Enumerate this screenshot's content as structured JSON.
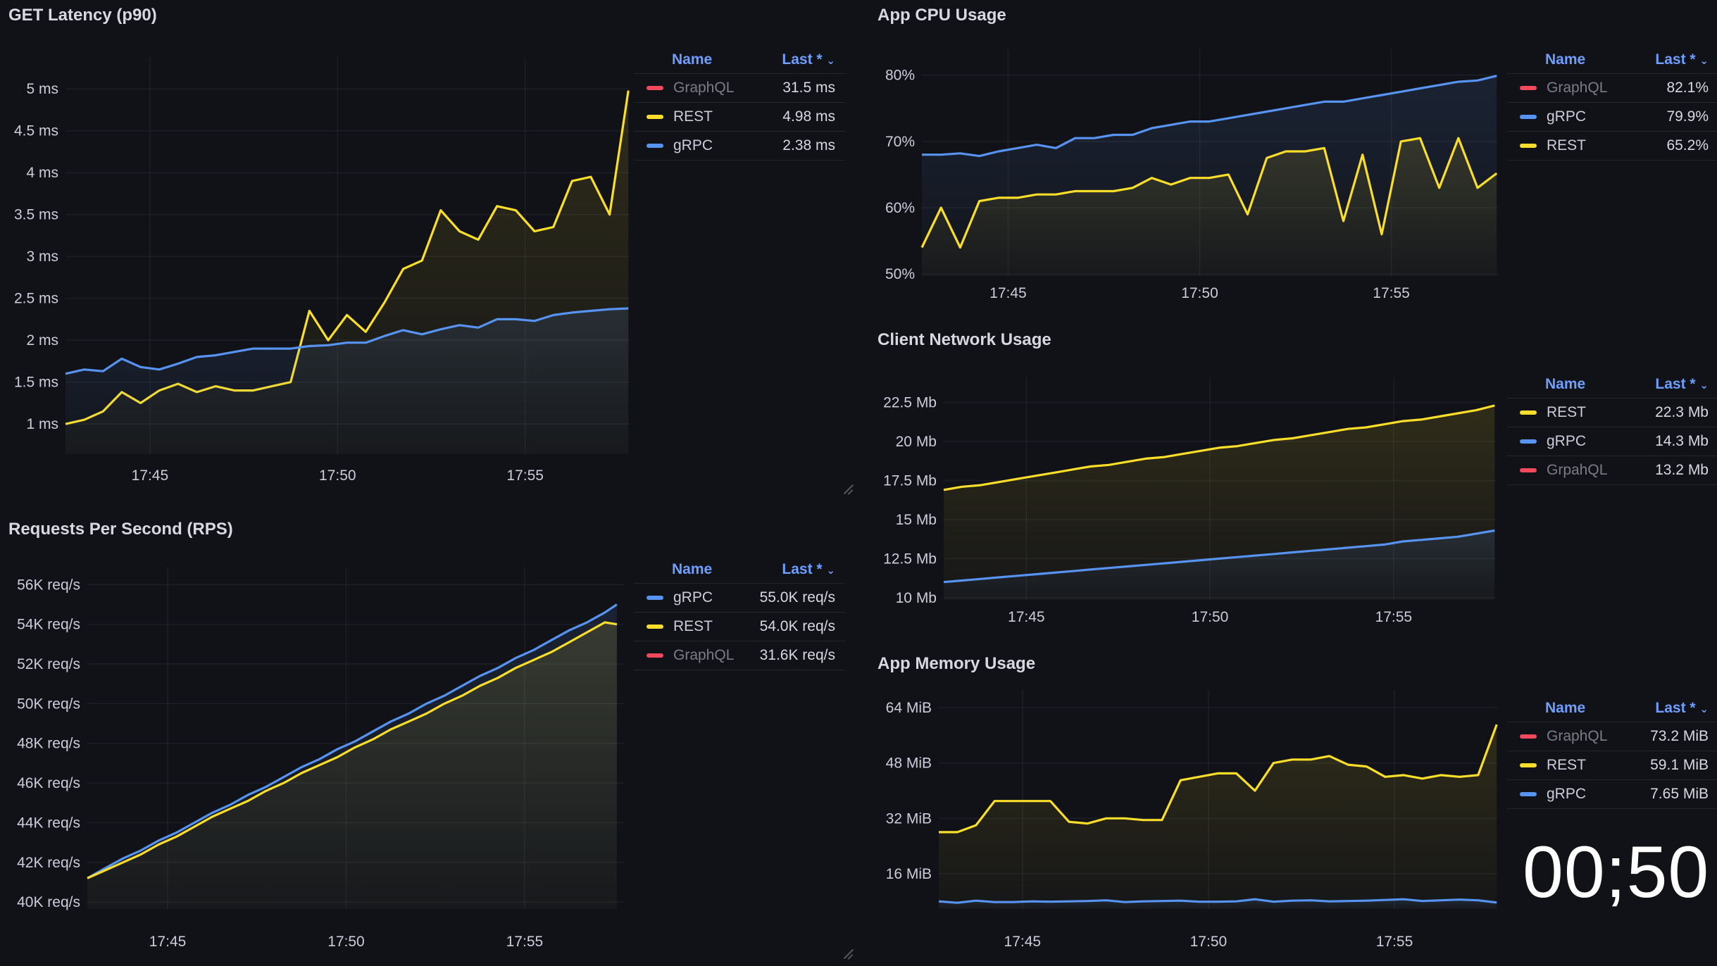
{
  "panels": [
    {
      "title": "GET Latency (p90)",
      "legend": {
        "name_header": "Name",
        "last_header": "Last *",
        "sort_icon": "chevron-down-icon",
        "rows": [
          {
            "name": "GraphQL",
            "value": "31.5 ms",
            "color": "#f2495c",
            "muted": true
          },
          {
            "name": "REST",
            "value": "4.98 ms",
            "color": "#fade2a",
            "muted": false
          },
          {
            "name": "gRPC",
            "value": "2.38 ms",
            "color": "#5794f2",
            "muted": false
          }
        ]
      }
    },
    {
      "title": "Requests Per Second (RPS)",
      "legend": {
        "name_header": "Name",
        "last_header": "Last *",
        "sort_icon": "chevron-down-icon",
        "rows": [
          {
            "name": "gRPC",
            "value": "55.0K req/s",
            "color": "#5794f2",
            "muted": false
          },
          {
            "name": "REST",
            "value": "54.0K req/s",
            "color": "#fade2a",
            "muted": false
          },
          {
            "name": "GraphQL",
            "value": "31.6K req/s",
            "color": "#f2495c",
            "muted": true
          }
        ]
      }
    },
    {
      "title": "App CPU Usage",
      "legend": {
        "name_header": "Name",
        "last_header": "Last *",
        "sort_icon": "chevron-down-icon",
        "rows": [
          {
            "name": "GraphQL",
            "value": "82.1%",
            "color": "#f2495c",
            "muted": true
          },
          {
            "name": "gRPC",
            "value": "79.9%",
            "color": "#5794f2",
            "muted": false
          },
          {
            "name": "REST",
            "value": "65.2%",
            "color": "#fade2a",
            "muted": false
          }
        ]
      }
    },
    {
      "title": "Client Network Usage",
      "legend": {
        "name_header": "Name",
        "last_header": "Last *",
        "sort_icon": "chevron-down-icon",
        "rows": [
          {
            "name": "REST",
            "value": "22.3 Mb",
            "color": "#fade2a",
            "muted": false
          },
          {
            "name": "gRPC",
            "value": "14.3 Mb",
            "color": "#5794f2",
            "muted": false
          },
          {
            "name": "GrpahQL",
            "value": "13.2 Mb",
            "color": "#f2495c",
            "muted": true
          }
        ]
      }
    },
    {
      "title": "App Memory Usage",
      "legend": {
        "name_header": "Name",
        "last_header": "Last *",
        "sort_icon": "chevron-down-icon",
        "rows": [
          {
            "name": "GraphQL",
            "value": "73.2 MiB",
            "color": "#f2495c",
            "muted": true
          },
          {
            "name": "REST",
            "value": "59.1 MiB",
            "color": "#fade2a",
            "muted": false
          },
          {
            "name": "gRPC",
            "value": "7.65 MiB",
            "color": "#5794f2",
            "muted": false
          }
        ]
      }
    }
  ],
  "overlay_timer": "00;50",
  "chart_data": [
    {
      "type": "line",
      "title": "GET Latency (p90)",
      "grid": true,
      "legend_placement": "right",
      "xlim": [
        "17:42:45",
        "17:57:47"
      ],
      "ylim": [
        0.64,
        5.38
      ],
      "xticks": [
        {
          "value": "17:45:00",
          "label": "17:45"
        },
        {
          "value": "17:50:00",
          "label": "17:50"
        },
        {
          "value": "17:55:00",
          "label": "17:55"
        }
      ],
      "yticks": [
        {
          "value": 1,
          "label": "1 ms"
        },
        {
          "value": 1.5,
          "label": "1.5 ms"
        },
        {
          "value": 2,
          "label": "2 ms"
        },
        {
          "value": 2.5,
          "label": "2.5 ms"
        },
        {
          "value": 3,
          "label": "3 ms"
        },
        {
          "value": 3.5,
          "label": "3.5 ms"
        },
        {
          "value": 4,
          "label": "4 ms"
        },
        {
          "value": 4.5,
          "label": "4.5 ms"
        },
        {
          "value": 5,
          "label": "5 ms"
        }
      ],
      "x": [
        "17:42:45",
        "17:43:15",
        "17:43:45",
        "17:44:15",
        "17:44:45",
        "17:45:15",
        "17:45:45",
        "17:46:15",
        "17:46:45",
        "17:47:15",
        "17:47:45",
        "17:48:15",
        "17:48:45",
        "17:49:15",
        "17:49:45",
        "17:50:15",
        "17:50:45",
        "17:51:15",
        "17:51:45",
        "17:52:15",
        "17:52:45",
        "17:53:15",
        "17:53:45",
        "17:54:15",
        "17:54:45",
        "17:55:15",
        "17:55:45",
        "17:56:15",
        "17:56:45",
        "17:57:15",
        "17:57:45"
      ],
      "series": [
        {
          "name": "REST",
          "color": "#fade2a",
          "values": [
            1.0,
            1.05,
            1.15,
            1.38,
            1.25,
            1.4,
            1.48,
            1.38,
            1.45,
            1.4,
            1.4,
            1.45,
            1.5,
            2.35,
            2.0,
            2.3,
            2.1,
            2.45,
            2.85,
            2.95,
            3.55,
            3.3,
            3.2,
            3.6,
            3.55,
            3.3,
            3.35,
            3.9,
            3.95,
            3.5,
            4.98
          ]
        },
        {
          "name": "gRPC",
          "color": "#5794f2",
          "values": [
            1.6,
            1.65,
            1.63,
            1.78,
            1.68,
            1.65,
            1.72,
            1.8,
            1.82,
            1.86,
            1.9,
            1.9,
            1.9,
            1.93,
            1.94,
            1.97,
            1.97,
            2.05,
            2.12,
            2.07,
            2.13,
            2.18,
            2.15,
            2.25,
            2.25,
            2.23,
            2.3,
            2.33,
            2.35,
            2.37,
            2.38
          ]
        }
      ]
    },
    {
      "type": "line",
      "title": "Requests Per Second (RPS)",
      "grid": true,
      "legend_placement": "right",
      "xlim": [
        "17:42:45",
        "17:57:47"
      ],
      "ylim": [
        39.65,
        56.9
      ],
      "xticks": [
        {
          "value": "17:45:00",
          "label": "17:45"
        },
        {
          "value": "17:50:00",
          "label": "17:50"
        },
        {
          "value": "17:55:00",
          "label": "17:55"
        }
      ],
      "yticks": [
        {
          "value": 40,
          "label": "40K req/s"
        },
        {
          "value": 42,
          "label": "42K req/s"
        },
        {
          "value": 44,
          "label": "44K req/s"
        },
        {
          "value": 46,
          "label": "46K req/s"
        },
        {
          "value": 48,
          "label": "48K req/s"
        },
        {
          "value": 50,
          "label": "50K req/s"
        },
        {
          "value": 52,
          "label": "52K req/s"
        },
        {
          "value": 54,
          "label": "54K req/s"
        },
        {
          "value": 56,
          "label": "56K req/s"
        }
      ],
      "x": [
        "17:42:45",
        "17:43:15",
        "17:43:45",
        "17:44:15",
        "17:44:45",
        "17:45:15",
        "17:45:45",
        "17:46:15",
        "17:46:45",
        "17:47:15",
        "17:47:45",
        "17:48:15",
        "17:48:45",
        "17:49:15",
        "17:49:45",
        "17:50:15",
        "17:50:45",
        "17:51:15",
        "17:51:45",
        "17:52:15",
        "17:52:45",
        "17:53:15",
        "17:53:45",
        "17:54:15",
        "17:54:45",
        "17:55:15",
        "17:55:45",
        "17:56:15",
        "17:56:45",
        "17:57:15",
        "17:57:35"
      ],
      "series": [
        {
          "name": "gRPC",
          "color": "#5794f2",
          "values": [
            41.2,
            41.7,
            42.2,
            42.6,
            43.1,
            43.5,
            44.0,
            44.5,
            44.9,
            45.4,
            45.8,
            46.3,
            46.8,
            47.2,
            47.7,
            48.1,
            48.6,
            49.1,
            49.5,
            50.0,
            50.4,
            50.9,
            51.4,
            51.8,
            52.3,
            52.7,
            53.2,
            53.7,
            54.1,
            54.6,
            55.0
          ]
        },
        {
          "name": "REST",
          "color": "#fade2a",
          "values": [
            41.2,
            41.6,
            42.0,
            42.4,
            42.9,
            43.3,
            43.8,
            44.3,
            44.7,
            45.1,
            45.6,
            46.0,
            46.5,
            46.9,
            47.3,
            47.8,
            48.2,
            48.7,
            49.1,
            49.5,
            50.0,
            50.4,
            50.9,
            51.3,
            51.8,
            52.2,
            52.6,
            53.1,
            53.6,
            54.1,
            54.0
          ]
        }
      ]
    },
    {
      "type": "line",
      "title": "App CPU Usage",
      "grid": true,
      "legend_placement": "right",
      "xlim": [
        "17:42:45",
        "17:57:47"
      ],
      "ylim": [
        49.7,
        83.9
      ],
      "xticks": [
        {
          "value": "17:45:00",
          "label": "17:45"
        },
        {
          "value": "17:50:00",
          "label": "17:50"
        },
        {
          "value": "17:55:00",
          "label": "17:55"
        }
      ],
      "yticks": [
        {
          "value": 50,
          "label": "50%"
        },
        {
          "value": 60,
          "label": "60%"
        },
        {
          "value": 70,
          "label": "70%"
        },
        {
          "value": 80,
          "label": "80%"
        }
      ],
      "x": [
        "17:42:45",
        "17:43:15",
        "17:43:45",
        "17:44:15",
        "17:44:45",
        "17:45:15",
        "17:45:45",
        "17:46:15",
        "17:46:45",
        "17:47:15",
        "17:47:45",
        "17:48:15",
        "17:48:45",
        "17:49:15",
        "17:49:45",
        "17:50:15",
        "17:50:45",
        "17:51:15",
        "17:51:45",
        "17:52:15",
        "17:52:45",
        "17:53:15",
        "17:53:45",
        "17:54:15",
        "17:54:45",
        "17:55:15",
        "17:55:45",
        "17:56:15",
        "17:56:45",
        "17:57:15",
        "17:57:45"
      ],
      "series": [
        {
          "name": "gRPC",
          "color": "#5794f2",
          "values": [
            68,
            68,
            68.2,
            67.8,
            68.5,
            69,
            69.5,
            69,
            70.5,
            70.5,
            71,
            71,
            72,
            72.5,
            73,
            73,
            73.5,
            74,
            74.5,
            75,
            75.5,
            76,
            76,
            76.5,
            77,
            77.5,
            78,
            78.5,
            79,
            79.2,
            79.9
          ]
        },
        {
          "name": "REST",
          "color": "#fade2a",
          "values": [
            54,
            60,
            54,
            61,
            61.5,
            61.5,
            62,
            62,
            62.5,
            62.5,
            62.5,
            63,
            64.5,
            63.5,
            64.5,
            64.5,
            65,
            59,
            67.5,
            68.5,
            68.5,
            69,
            58,
            68,
            56,
            70,
            70.5,
            63,
            70.5,
            63,
            65.2
          ]
        }
      ]
    },
    {
      "type": "line",
      "title": "Client Network Usage",
      "grid": true,
      "legend_placement": "right",
      "xlim": [
        "17:42:45",
        "17:57:47"
      ],
      "ylim": [
        9.86,
        24.1
      ],
      "xticks": [
        {
          "value": "17:45:00",
          "label": "17:45"
        },
        {
          "value": "17:50:00",
          "label": "17:50"
        },
        {
          "value": "17:55:00",
          "label": "17:55"
        }
      ],
      "yticks": [
        {
          "value": 10,
          "label": "10 Mb"
        },
        {
          "value": 12.5,
          "label": "12.5 Mb"
        },
        {
          "value": 15,
          "label": "15 Mb"
        },
        {
          "value": 17.5,
          "label": "17.5 Mb"
        },
        {
          "value": 20,
          "label": "20 Mb"
        },
        {
          "value": 22.5,
          "label": "22.5 Mb"
        }
      ],
      "x": [
        "17:42:45",
        "17:43:15",
        "17:43:45",
        "17:44:15",
        "17:44:45",
        "17:45:15",
        "17:45:45",
        "17:46:15",
        "17:46:45",
        "17:47:15",
        "17:47:45",
        "17:48:15",
        "17:48:45",
        "17:49:15",
        "17:49:45",
        "17:50:15",
        "17:50:45",
        "17:51:15",
        "17:51:45",
        "17:52:15",
        "17:52:45",
        "17:53:15",
        "17:53:45",
        "17:54:15",
        "17:54:45",
        "17:55:15",
        "17:55:45",
        "17:56:15",
        "17:56:45",
        "17:57:15",
        "17:57:45"
      ],
      "series": [
        {
          "name": "REST",
          "color": "#fade2a",
          "values": [
            16.9,
            17.1,
            17.2,
            17.4,
            17.6,
            17.8,
            18.0,
            18.2,
            18.4,
            18.5,
            18.7,
            18.9,
            19.0,
            19.2,
            19.4,
            19.6,
            19.7,
            19.9,
            20.1,
            20.2,
            20.4,
            20.6,
            20.8,
            20.9,
            21.1,
            21.3,
            21.4,
            21.6,
            21.8,
            22.0,
            22.3
          ]
        },
        {
          "name": "gRPC",
          "color": "#5794f2",
          "values": [
            11.0,
            11.1,
            11.2,
            11.3,
            11.4,
            11.5,
            11.6,
            11.7,
            11.8,
            11.9,
            12.0,
            12.1,
            12.2,
            12.3,
            12.4,
            12.5,
            12.6,
            12.7,
            12.8,
            12.9,
            13.0,
            13.1,
            13.2,
            13.3,
            13.4,
            13.6,
            13.7,
            13.8,
            13.9,
            14.1,
            14.3
          ]
        }
      ]
    },
    {
      "type": "line",
      "title": "App Memory Usage",
      "grid": true,
      "legend_placement": "right",
      "xlim": [
        "17:42:45",
        "17:57:47"
      ],
      "ylim": [
        5.8,
        69.1
      ],
      "xticks": [
        {
          "value": "17:45:00",
          "label": "17:45"
        },
        {
          "value": "17:50:00",
          "label": "17:50"
        },
        {
          "value": "17:55:00",
          "label": "17:55"
        }
      ],
      "yticks": [
        {
          "value": 16,
          "label": "16 MiB"
        },
        {
          "value": 32,
          "label": "32 MiB"
        },
        {
          "value": 48,
          "label": "48 MiB"
        },
        {
          "value": 64,
          "label": "64 MiB"
        }
      ],
      "x": [
        "17:42:45",
        "17:43:15",
        "17:43:45",
        "17:44:15",
        "17:44:45",
        "17:45:15",
        "17:45:45",
        "17:46:15",
        "17:46:45",
        "17:47:15",
        "17:47:45",
        "17:48:15",
        "17:48:45",
        "17:49:15",
        "17:49:45",
        "17:50:15",
        "17:50:45",
        "17:51:15",
        "17:51:45",
        "17:52:15",
        "17:52:45",
        "17:53:15",
        "17:53:45",
        "17:54:15",
        "17:54:45",
        "17:55:15",
        "17:55:45",
        "17:56:15",
        "17:56:45",
        "17:57:15",
        "17:57:45"
      ],
      "series": [
        {
          "name": "REST",
          "color": "#fade2a",
          "values": [
            28,
            28,
            30,
            37,
            37,
            37,
            37,
            31,
            30.5,
            32,
            32,
            31.5,
            31.5,
            43,
            44,
            45,
            45,
            40,
            48,
            49,
            49,
            50,
            47.5,
            47,
            44,
            44.5,
            43.5,
            44.5,
            44,
            44.5,
            59.1
          ]
        },
        {
          "name": "gRPC",
          "color": "#5794f2",
          "values": [
            8,
            7.6,
            8.2,
            7.8,
            7.8,
            8,
            7.9,
            8,
            8.1,
            8.3,
            7.8,
            8,
            8.1,
            8.2,
            7.9,
            7.9,
            8,
            8.6,
            7.9,
            8.2,
            8.3,
            8,
            8.1,
            8.2,
            8.4,
            8.6,
            8.1,
            8.3,
            8.5,
            8.3,
            7.65
          ]
        }
      ]
    }
  ]
}
